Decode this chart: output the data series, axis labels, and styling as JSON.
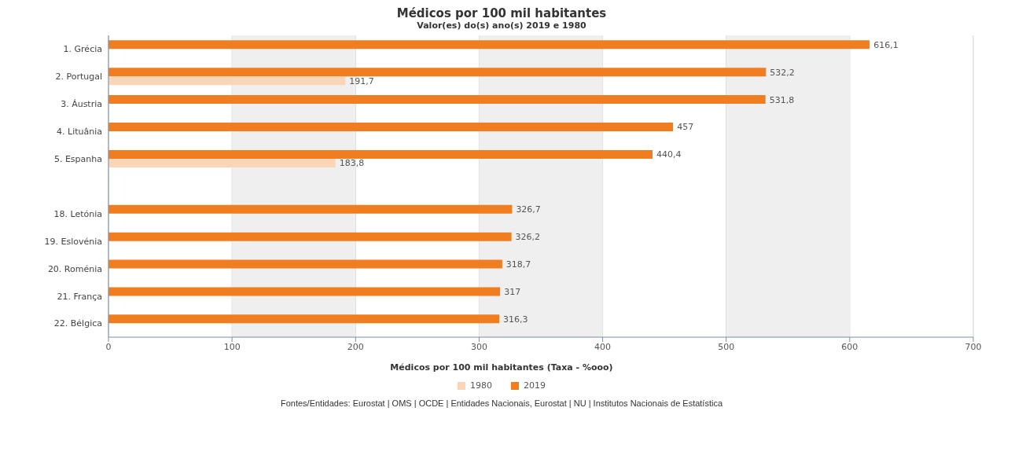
{
  "chart_data": {
    "type": "bar",
    "orientation": "horizontal",
    "title": "Médicos por 100 mil habitantes",
    "subtitle": "Valor(es) do(s) ano(s) 2019 e 1980",
    "xlabel": "Médicos por 100 mil habitantes (Taxa - %ooo)",
    "categories": [
      "1. Grécia",
      "2. Portugal",
      "3. Áustria",
      "4. Lituânia",
      "5. Espanha",
      null,
      "18. Letónia",
      "19. Eslovénia",
      "20. Roménia",
      "21. França",
      "22. Bélgica"
    ],
    "series": [
      {
        "name": "2019",
        "color": "#f07d1f",
        "values": [
          616.1,
          532.2,
          531.8,
          457,
          440.4,
          null,
          326.7,
          326.2,
          318.7,
          317,
          316.3
        ],
        "value_labels": [
          "616,1",
          "532,2",
          "531,8",
          "457",
          "440,4",
          null,
          "326,7",
          "326,2",
          "318,7",
          "317",
          "316,3"
        ]
      },
      {
        "name": "1980",
        "color": "#fbd5b8",
        "values": [
          null,
          191.7,
          null,
          null,
          183.8,
          null,
          null,
          null,
          null,
          null,
          null
        ],
        "value_labels": [
          null,
          "191,7",
          null,
          null,
          "183,8",
          null,
          null,
          null,
          null,
          null,
          null
        ]
      }
    ],
    "xlim": [
      0,
      700
    ],
    "xticks": [
      0,
      100,
      200,
      300,
      400,
      500,
      600,
      700
    ],
    "grid": "x",
    "legend": "bottom",
    "bands": [
      {
        "axis": "x",
        "from": 100,
        "to": 200,
        "color": "#efefef"
      },
      {
        "axis": "x",
        "from": 300,
        "to": 400,
        "color": "#efefef"
      },
      {
        "axis": "x",
        "from": 500,
        "to": 600,
        "color": "#efefef"
      }
    ],
    "annotations": [
      "Fontes/Entidades: Eurostat | OMS | OCDE | Entidades Nacionais, Eurostat | NU | Institutos Nacionais de Estatística"
    ]
  }
}
